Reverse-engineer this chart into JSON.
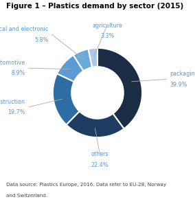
{
  "title": "Figure 1 – Plastics demand by sector (2015)",
  "segments": [
    {
      "label": "packaging",
      "value": 39.9,
      "color": "#1b2d45"
    },
    {
      "label": "others",
      "value": 22.4,
      "color": "#1f3d63"
    },
    {
      "label": "construction",
      "value": 19.7,
      "color": "#2e6da4"
    },
    {
      "label": "automotive",
      "value": 8.9,
      "color": "#5b9bd5"
    },
    {
      "label": "electrical and electronic",
      "value": 5.8,
      "color": "#6aaad8"
    },
    {
      "label": "agriculture",
      "value": 3.3,
      "color": "#aec9e8"
    }
  ],
  "label_color": "#5b9bd5",
  "wedge_edge_color": "#ffffff",
  "wedge_edge_width": 1.5,
  "donut_width": 0.42,
  "background_color": "#ffffff",
  "title_fontsize": 7.5,
  "label_fontsize": 5.8,
  "footnote_color": "#444444",
  "footnote_fontsize": 5.2,
  "footnote_link_color": "#4472c4",
  "footnote_line1": "Data source: ",
  "footnote_link": "Plastics Europe",
  "footnote_rest": ", 2016. Data refer to EU-28, Norway",
  "footnote_line2": "and Switzerland."
}
